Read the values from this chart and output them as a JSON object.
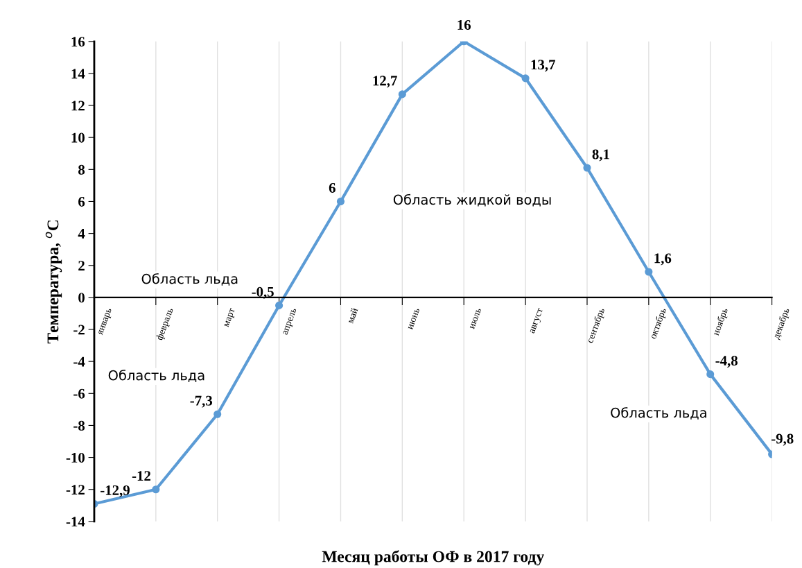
{
  "chart_data": {
    "type": "line",
    "xlabel": "Месяц работы ОФ в 2017 году",
    "ylabel": "Температура, $^{o}$C",
    "categories": [
      "январь",
      "февраль",
      "март",
      "апрель",
      "май",
      "июнь",
      "июль",
      "август",
      "сентябрь",
      "октябрь",
      "ноябрь",
      "декабрь"
    ],
    "series": [
      {
        "color": "#5b9bd5",
        "values": [
          -12.9,
          -12,
          -7.3,
          -0.5,
          6,
          12.7,
          16,
          13.7,
          8.1,
          1.6,
          -4.8,
          -9.8
        ],
        "value_labels": [
          "-12,9",
          "-12",
          "-7,3",
          "-0,5",
          "6",
          "12,7",
          "16",
          "13,7",
          "8,1",
          "1,6",
          "-4,8",
          "-9,8"
        ]
      }
    ],
    "ylim": [
      -14,
      16
    ],
    "yticks": [
      -14,
      -12,
      -10,
      -8,
      -6,
      -4,
      -2,
      0,
      2,
      4,
      6,
      8,
      10,
      12,
      14,
      16
    ],
    "annotations": [
      "Область жидкой воды",
      "Область льда",
      "Область льда",
      "Область льда"
    ],
    "grid": "x",
    "marker": "circle",
    "line_style": "solid",
    "legend": false
  }
}
